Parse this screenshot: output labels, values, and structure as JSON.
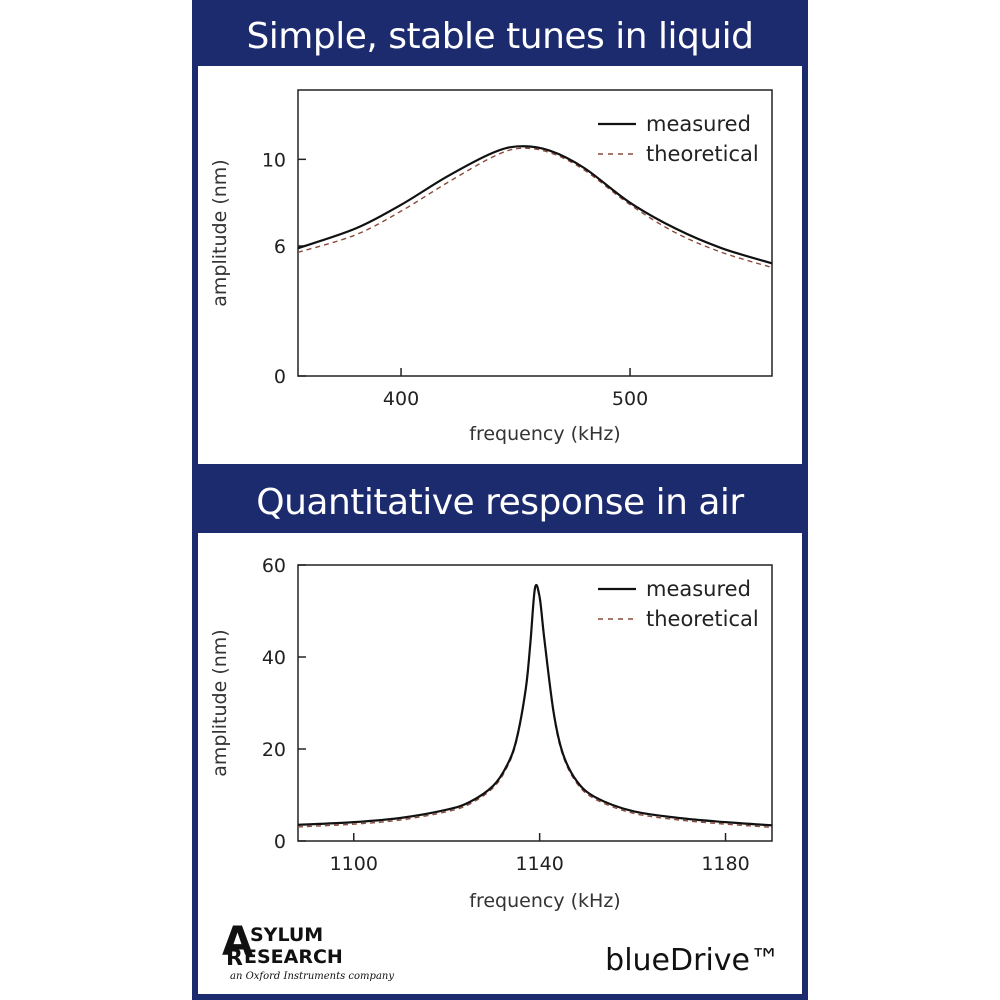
{
  "banners": {
    "top": "Simple, stable tunes in liquid",
    "bottom": "Quantitative response in air"
  },
  "chart_data": [
    {
      "type": "line",
      "title": "Simple, stable tunes in liquid",
      "xlabel": "frequency (kHz)",
      "ylabel": "amplitude (nm)",
      "xlim": [
        355,
        562
      ],
      "ylim": [
        0,
        13.2
      ],
      "xticks": [
        400,
        500
      ],
      "yticks": [
        0,
        6,
        10
      ],
      "grid": false,
      "legend_position": "top-right",
      "series": [
        {
          "name": "measured",
          "style": "solid",
          "color": "#111111",
          "x": [
            355,
            380,
            400,
            420,
            440,
            452,
            465,
            480,
            500,
            520,
            540,
            562
          ],
          "y": [
            5.9,
            6.8,
            7.9,
            9.2,
            10.3,
            10.6,
            10.4,
            9.6,
            8.0,
            6.8,
            5.9,
            5.2
          ]
        },
        {
          "name": "theoretical",
          "style": "dashed",
          "color": "#8a4a3c",
          "x": [
            355,
            380,
            400,
            420,
            440,
            452,
            465,
            480,
            500,
            520,
            540,
            562
          ],
          "y": [
            5.8,
            6.6,
            7.7,
            9.0,
            10.2,
            10.6,
            10.4,
            9.6,
            8.0,
            6.7,
            5.8,
            5.1
          ]
        }
      ]
    },
    {
      "type": "line",
      "title": "Quantitative response in air",
      "xlabel": "frequency (kHz)",
      "ylabel": "amplitude (nm)",
      "xlim": [
        1088,
        1190
      ],
      "ylim": [
        0,
        60
      ],
      "xticks": [
        1100,
        1140,
        1180
      ],
      "yticks": [
        0,
        20,
        40,
        60
      ],
      "grid": false,
      "legend_position": "top-right",
      "series": [
        {
          "name": "measured",
          "style": "solid",
          "color": "#111111",
          "x": [
            1088,
            1100,
            1110,
            1120,
            1125,
            1130,
            1133,
            1135,
            1137,
            1138,
            1139,
            1140,
            1141,
            1143,
            1145,
            1148,
            1152,
            1160,
            1170,
            1180,
            1190
          ],
          "y": [
            3.5,
            4.1,
            5.0,
            6.8,
            8.5,
            12.0,
            16.5,
            22.0,
            33.0,
            43.0,
            55.0,
            53.0,
            44.0,
            28.0,
            19.0,
            13.0,
            9.5,
            6.5,
            5.0,
            4.1,
            3.4
          ]
        },
        {
          "name": "theoretical",
          "style": "dashed",
          "color": "#8a4a3c",
          "x": [
            1088,
            1100,
            1110,
            1120,
            1125,
            1130,
            1133,
            1135,
            1137,
            1138,
            1139,
            1140,
            1141,
            1143,
            1145,
            1148,
            1152,
            1160,
            1170,
            1180,
            1190
          ],
          "y": [
            3.5,
            4.1,
            5.0,
            6.8,
            8.5,
            12.0,
            16.5,
            22.0,
            33.0,
            43.0,
            55.0,
            53.0,
            44.0,
            28.0,
            19.0,
            13.0,
            9.5,
            6.5,
            5.0,
            4.1,
            3.4
          ]
        }
      ]
    }
  ],
  "logo": {
    "line1": "SYLUM",
    "line2": "ESEARCH",
    "letter_a": "A",
    "letter_r": "R",
    "tagline": "an Oxford Instruments company"
  },
  "brand": "blueDrive™"
}
